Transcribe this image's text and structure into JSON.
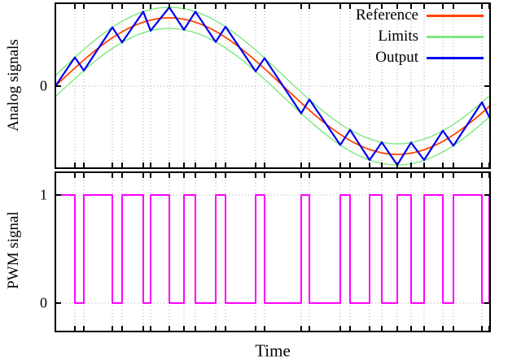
{
  "figure": {
    "xlabel": "Time",
    "background": "#ffffff",
    "border_color": "#000000",
    "grid_color": "#aaaaaa"
  },
  "chart_data": [
    {
      "type": "line",
      "panel": "analog",
      "ylabel": "Analog signals",
      "xlabel": "Time",
      "xlim": [
        0,
        1
      ],
      "ylim": [
        -1.22,
        1.23
      ],
      "grid": true,
      "yticks": [
        {
          "value": 0,
          "label": "0"
        }
      ],
      "legend": {
        "position": "top-right",
        "entries": [
          "Reference",
          "Limits",
          "Output"
        ]
      },
      "series": [
        {
          "name": "Reference",
          "color": "#ff4500",
          "kind": "sine",
          "amplitude": 1.0,
          "cycles": 0.9536,
          "phase": 0.0
        },
        {
          "name": "Limits",
          "color": "#7de87d",
          "kind": "band-around-reference",
          "delta": 0.155
        },
        {
          "name": "Output",
          "color": "#0000ee",
          "kind": "polyline",
          "points": [
            [
              0.0,
              0.0
            ],
            [
              0.0449,
              0.4208
            ],
            [
              0.0655,
              0.2275
            ],
            [
              0.1311,
              0.8623
            ],
            [
              0.1535,
              0.6403
            ],
            [
              0.2022,
              1.091
            ],
            [
              0.2191,
              0.8118
            ],
            [
              0.2622,
              1.155
            ],
            [
              0.2959,
              0.8247
            ],
            [
              0.3221,
              1.092
            ],
            [
              0.3689,
              0.6472
            ],
            [
              0.3914,
              0.8706
            ],
            [
              0.4607,
              0.2173
            ],
            [
              0.4813,
              0.4101
            ],
            [
              0.5655,
              -0.3992
            ],
            [
              0.5843,
              -0.195
            ],
            [
              0.6554,
              -0.862
            ],
            [
              0.6779,
              -0.6406
            ],
            [
              0.7228,
              -1.0834
            ],
            [
              0.7509,
              -0.8226
            ],
            [
              0.7865,
              -1.155
            ],
            [
              0.8183,
              -0.8272
            ],
            [
              0.8483,
              -1.0835
            ],
            [
              0.8914,
              -0.653
            ],
            [
              0.9157,
              -0.8739
            ],
            [
              0.9813,
              -0.2372
            ],
            [
              0.9981,
              -0.4509
            ],
            [
              1.0,
              -0.433
            ]
          ]
        }
      ]
    },
    {
      "type": "line",
      "panel": "pwm",
      "ylabel": "PWM signal",
      "xlabel": "Time",
      "xlim": [
        0,
        1
      ],
      "ylim": [
        -0.26,
        1.21
      ],
      "grid": true,
      "yticks": [
        {
          "value": 1,
          "label": "1"
        },
        {
          "value": 0,
          "label": "0"
        }
      ],
      "series": [
        {
          "name": "PWM",
          "color": "#ff00ff",
          "kind": "square",
          "initial_level": 1,
          "edge_times": [
            0.0449,
            0.0655,
            0.1311,
            0.1535,
            0.2022,
            0.2191,
            0.2622,
            0.2959,
            0.3221,
            0.3689,
            0.3914,
            0.4607,
            0.4813,
            0.5655,
            0.5843,
            0.6554,
            0.6779,
            0.7228,
            0.7509,
            0.7865,
            0.8183,
            0.8483,
            0.8914,
            0.9157,
            0.9813,
            0.9981
          ]
        }
      ]
    }
  ]
}
